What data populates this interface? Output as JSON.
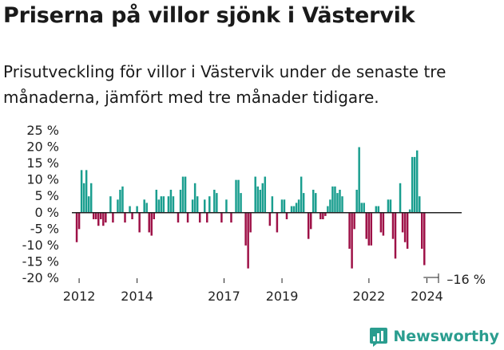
{
  "header": {
    "title": "Priserna på villor sjönk i Västervik",
    "subtitle": "Prisutveckling för villor i Västervik under de senaste tre månaderna, jämfört med tre månader tidigare."
  },
  "brand": {
    "name": "Newsworthy"
  },
  "colors": {
    "positive": "#1a9e8f",
    "negative": "#9e1147",
    "baseline": "#222222"
  },
  "chart_data": {
    "type": "bar",
    "unit": "%",
    "ylim": [
      -20,
      25
    ],
    "yticks": [
      "25 %",
      "20 %",
      "15 %",
      "10 %",
      "5 %",
      "0 %",
      "-5 %",
      "-10 %",
      "-15 %",
      "-20 %"
    ],
    "ytick_values": [
      25,
      20,
      15,
      10,
      5,
      0,
      -5,
      -10,
      -15,
      -20
    ],
    "xticks": [
      "2012",
      "2014",
      "2017",
      "2019",
      "2022",
      "2024"
    ],
    "xtick_values": [
      2012.0,
      2014.0,
      2017.0,
      2019.0,
      2022.0,
      2024.0
    ],
    "last_value_label": "–16 %",
    "x_start": 2011.917,
    "x_step": 0.0833,
    "values": [
      -9,
      -5,
      13,
      9,
      13,
      5,
      9,
      -2,
      -2,
      -4,
      -2,
      -4,
      -3,
      0,
      5,
      -3,
      0,
      4,
      7,
      8,
      -3,
      0,
      2,
      -2,
      0,
      2,
      -6,
      0,
      4,
      3,
      -6,
      -7,
      -2,
      7,
      4,
      5,
      5,
      0,
      5,
      7,
      5,
      0,
      -3,
      7,
      11,
      11,
      -3,
      0,
      4,
      9,
      5,
      -3,
      0,
      4,
      -3,
      5,
      0,
      7,
      6,
      0,
      -3,
      0,
      4,
      0,
      -3,
      0,
      10,
      10,
      6,
      0,
      -10,
      -17,
      -6,
      0,
      11,
      8,
      7,
      9,
      11,
      0,
      -4,
      5,
      0,
      -6,
      0,
      4,
      4,
      -2,
      0,
      2,
      2,
      3,
      4,
      11,
      6,
      0,
      -8,
      -5,
      7,
      6,
      0,
      -2,
      -2,
      -1,
      2,
      4,
      8,
      8,
      6,
      7,
      5,
      0,
      0,
      -11,
      -17,
      -5,
      7,
      20,
      3,
      3,
      -8,
      -10,
      -10,
      0,
      2,
      2,
      -6,
      -7,
      0,
      4,
      4,
      -8,
      -14,
      0,
      9,
      -6,
      -9,
      -11,
      1,
      17,
      17,
      19,
      5,
      -11,
      -16
    ]
  }
}
